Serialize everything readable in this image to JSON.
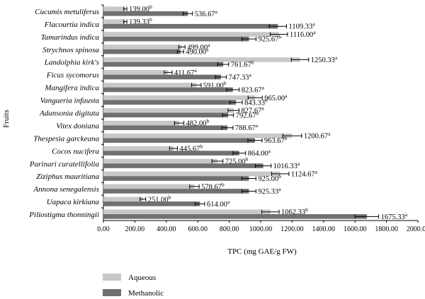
{
  "chart_data": {
    "type": "bar",
    "orientation": "horizontal",
    "xlabel": "TPC (mg GAE/g FW)",
    "ylabel": "Fruits",
    "xlim": [
      0,
      2000
    ],
    "xticks": [
      "0.00",
      "200.00",
      "400.00",
      "600.00",
      "800.00",
      "1000.00",
      "1200.00",
      "1400.00",
      "1600.00",
      "1800.00",
      "2000.00"
    ],
    "legend_position": "bottom-left",
    "categories": [
      "Cucumis metuliferus",
      "Flacourtia indica",
      "Tamarindus indica",
      "Strychnos spinosa",
      "Landolphia kirk's",
      "Ficus sycomorus",
      "Mangifera indica",
      "Vangueria infausta",
      "Adansonia digitata",
      "Vitex doniana",
      "Thespesia garckeana",
      "Cocos nucifera",
      "Parinari curatellifolia",
      "Ziziphus mauritiana",
      "Annona senegalensis",
      "Uapaca kirkiana",
      "Piliostigma thonningii"
    ],
    "series": [
      {
        "name": "Aqueous",
        "color": "#c8c8c8",
        "values": [
          139.0,
          139.33,
          1116.0,
          499.0,
          1250.33,
          411.67,
          591.0,
          965.0,
          827.67,
          482.0,
          1200.67,
          445.67,
          725.0,
          1124.67,
          578.67,
          251.0,
          1062.33
        ],
        "errors": [
          10,
          10,
          55,
          20,
          55,
          25,
          30,
          45,
          35,
          30,
          60,
          25,
          35,
          55,
          30,
          18,
          55
        ],
        "labels": [
          "139.00",
          "139.33",
          "1116.00",
          "499.00",
          "1250.33",
          "411.67",
          "591.00",
          "965.00",
          "827.67",
          "482.00",
          "1200.67",
          "445.67",
          "725.00",
          "1124.67",
          "578.67",
          "251.00",
          "1062.33"
        ],
        "superscripts": [
          "b",
          "b",
          "a",
          "a",
          "a",
          "a",
          "b",
          "a",
          "a",
          "b",
          "a",
          "b",
          "b",
          "a",
          "b",
          "b",
          "b"
        ]
      },
      {
        "name": "Methanolic",
        "color": "#707070",
        "values": [
          536.67,
          1109.33,
          925.67,
          490.0,
          761.67,
          747.33,
          823.67,
          843.33,
          792.67,
          788.67,
          963.67,
          864.0,
          1016.33,
          925.0,
          925.33,
          614.0,
          1675.33
        ],
        "errors": [
          30,
          55,
          45,
          20,
          35,
          35,
          40,
          40,
          35,
          35,
          45,
          40,
          50,
          45,
          45,
          30,
          75
        ],
        "labels": [
          "536.67",
          "1109.33",
          "925.67",
          "490.00",
          "761.67",
          "747.33",
          "823.67",
          "843.33",
          "792.67",
          "788.67",
          "963.67",
          "864.00",
          "1016.33",
          "925.00",
          "925.33",
          "614.00",
          "1675.33"
        ],
        "superscripts": [
          "a",
          "a",
          "b",
          "a",
          "b",
          "a",
          "a",
          "b",
          "a",
          "a",
          "b",
          "a",
          "a",
          "b",
          "a",
          "a",
          "a"
        ]
      }
    ]
  }
}
